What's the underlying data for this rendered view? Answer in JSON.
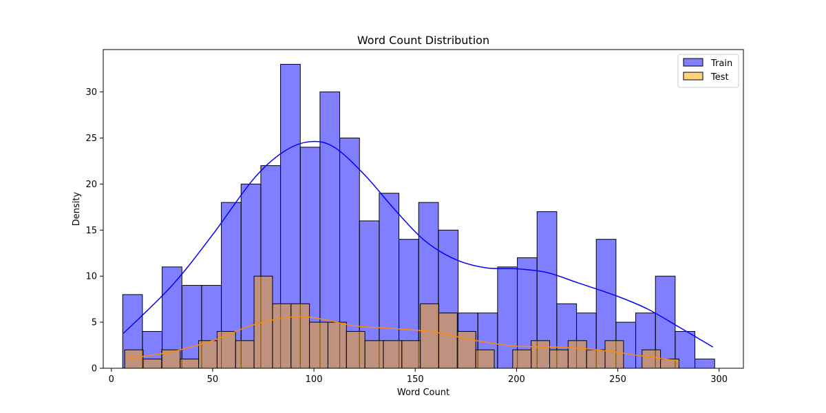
{
  "chart_data": {
    "type": "bar",
    "title": "Word Count Distribution",
    "xlabel": "Word Count",
    "ylabel": "Density",
    "xlim": [
      -4,
      312
    ],
    "ylim": [
      0,
      34.6
    ],
    "xticks": [
      0,
      50,
      100,
      150,
      200,
      250,
      300
    ],
    "yticks": [
      0,
      5,
      10,
      15,
      20,
      25,
      30
    ],
    "grid": false,
    "legend_position": "top-right",
    "series": [
      {
        "name": "Train",
        "color": "#0000ff",
        "kde_color": "#0000ff",
        "bin_start": 5.6,
        "bin_width": 9.74,
        "counts": [
          8,
          4,
          11,
          9,
          9,
          18,
          20,
          22,
          33,
          24,
          30,
          25,
          16,
          19,
          14,
          18,
          15,
          6,
          6,
          11,
          12,
          17,
          7,
          6,
          14,
          5,
          6,
          10,
          4,
          1
        ],
        "kde": [
          [
            6,
            3.8
          ],
          [
            30,
            9.0
          ],
          [
            50,
            14.5
          ],
          [
            70,
            20.5
          ],
          [
            85,
            23.5
          ],
          [
            98,
            24.6
          ],
          [
            110,
            24.0
          ],
          [
            125,
            21.0
          ],
          [
            140,
            17.2
          ],
          [
            155,
            13.8
          ],
          [
            170,
            11.8
          ],
          [
            185,
            10.9
          ],
          [
            200,
            10.8
          ],
          [
            215,
            10.4
          ],
          [
            230,
            9.3
          ],
          [
            250,
            7.8
          ],
          [
            265,
            6.4
          ],
          [
            280,
            4.5
          ],
          [
            297,
            2.3
          ]
        ]
      },
      {
        "name": "Test",
        "color": "#ffa500",
        "kde_color": "#ff8c00",
        "bin_start": 6.6,
        "bin_width": 9.12,
        "counts": [
          2,
          1,
          2,
          1,
          3,
          4,
          3,
          10,
          7,
          7,
          5,
          5,
          4,
          3,
          3,
          3,
          7,
          6,
          4,
          2,
          0,
          2,
          3,
          2,
          3,
          2,
          3,
          0,
          2,
          1
        ],
        "kde": [
          [
            7,
            1.0
          ],
          [
            30,
            1.8
          ],
          [
            50,
            3.0
          ],
          [
            70,
            4.7
          ],
          [
            90,
            5.6
          ],
          [
            105,
            5.3
          ],
          [
            120,
            4.6
          ],
          [
            140,
            4.3
          ],
          [
            160,
            3.9
          ],
          [
            180,
            3.0
          ],
          [
            200,
            2.4
          ],
          [
            220,
            2.3
          ],
          [
            240,
            2.0
          ],
          [
            260,
            1.4
          ],
          [
            280,
            0.8
          ]
        ]
      }
    ]
  }
}
